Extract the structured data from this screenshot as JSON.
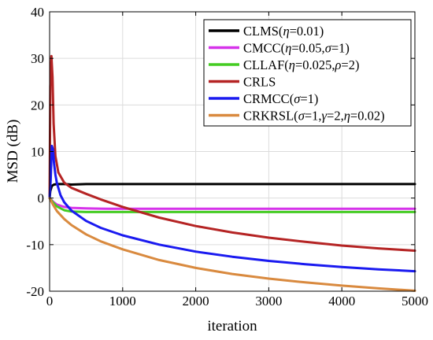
{
  "chart_data": {
    "type": "line",
    "xlabel": "iteration",
    "ylabel": "MSD (dB)",
    "xlim": [
      0,
      5000
    ],
    "ylim": [
      -20,
      40
    ],
    "xticks": [
      0,
      1000,
      2000,
      3000,
      4000,
      5000
    ],
    "yticks": [
      -20,
      -10,
      0,
      10,
      20,
      30,
      40
    ],
    "xtick_labels": [
      "0",
      "1000",
      "2000",
      "3000",
      "4000",
      "5000"
    ],
    "ytick_labels": [
      "-20",
      "-10",
      "0",
      "10",
      "20",
      "30",
      "40"
    ],
    "grid": true,
    "legend_position": "top-right",
    "series": [
      {
        "name": "CLMS(η=0.01)",
        "legend": [
          {
            "t": "CLMS("
          },
          {
            "t": "η",
            "i": true
          },
          {
            "t": "=0.01)"
          }
        ],
        "color": "#000000",
        "x": [
          0,
          10,
          30,
          60,
          100,
          150,
          200,
          300,
          500,
          800,
          1000,
          1500,
          2000,
          2500,
          3000,
          3500,
          4000,
          4500,
          5000
        ],
        "y": [
          0,
          1.5,
          2.6,
          2.9,
          3.0,
          3.0,
          3.0,
          2.9,
          3.0,
          3.0,
          3.0,
          3.0,
          3.0,
          3.0,
          3.0,
          3.0,
          3.0,
          3.0,
          3.0
        ]
      },
      {
        "name": "CMCC(η=0.05,σ=1)",
        "legend": [
          {
            "t": "CMCC("
          },
          {
            "t": "η",
            "i": true
          },
          {
            "t": "=0.05,"
          },
          {
            "t": "σ",
            "i": true
          },
          {
            "t": "=1)"
          }
        ],
        "color": "#d633ea",
        "x": [
          0,
          50,
          100,
          200,
          300,
          500,
          800,
          1000,
          1500,
          2000,
          2500,
          3000,
          3500,
          4000,
          4500,
          5000
        ],
        "y": [
          0,
          -0.8,
          -1.4,
          -1.9,
          -2.1,
          -2.2,
          -2.3,
          -2.3,
          -2.3,
          -2.3,
          -2.3,
          -2.3,
          -2.3,
          -2.3,
          -2.3,
          -2.3
        ]
      },
      {
        "name": "CLLAF(η=0.025,ρ=2)",
        "legend": [
          {
            "t": "CLLAF("
          },
          {
            "t": "η",
            "i": true
          },
          {
            "t": "=0.025,"
          },
          {
            "t": "ρ",
            "i": true
          },
          {
            "t": "=2)"
          }
        ],
        "color": "#44cc22",
        "x": [
          0,
          50,
          100,
          200,
          300,
          500,
          800,
          1000,
          1500,
          2000,
          2500,
          3000,
          3500,
          4000,
          4500,
          5000
        ],
        "y": [
          0,
          -1.0,
          -1.8,
          -2.6,
          -2.9,
          -3.0,
          -3.0,
          -3.0,
          -3.0,
          -3.0,
          -3.0,
          -3.0,
          -3.0,
          -3.0,
          -3.0,
          -3.0
        ]
      },
      {
        "name": "CRLS",
        "legend": [
          {
            "t": "CRLS"
          }
        ],
        "color": "#b52424",
        "x": [
          0,
          10,
          25,
          40,
          55,
          80,
          120,
          200,
          300,
          500,
          700,
          1000,
          1500,
          2000,
          2500,
          3000,
          3500,
          4000,
          4500,
          5000
        ],
        "y": [
          0,
          24,
          30.5,
          26,
          16,
          9,
          5.5,
          3.3,
          2.2,
          0.9,
          -0.3,
          -1.9,
          -4.2,
          -6.0,
          -7.4,
          -8.5,
          -9.4,
          -10.2,
          -10.8,
          -11.3
        ]
      },
      {
        "name": "CRMCC(σ=1)",
        "legend": [
          {
            "t": "CRMCC("
          },
          {
            "t": "σ",
            "i": true
          },
          {
            "t": "=1)"
          }
        ],
        "color": "#1a1af0",
        "x": [
          0,
          15,
          30,
          45,
          60,
          80,
          100,
          150,
          200,
          300,
          500,
          700,
          1000,
          1500,
          2000,
          2500,
          3000,
          3500,
          4000,
          4500,
          5000
        ],
        "y": [
          0,
          4,
          11.2,
          10.5,
          7.5,
          5.0,
          3.2,
          0.6,
          -0.9,
          -2.7,
          -4.9,
          -6.4,
          -8.0,
          -10.0,
          -11.5,
          -12.6,
          -13.5,
          -14.2,
          -14.8,
          -15.3,
          -15.7
        ]
      },
      {
        "name": "CRKRSL(σ=1,γ=2,η=0.02)",
        "legend": [
          {
            "t": "CRKRSL("
          },
          {
            "t": "σ",
            "i": true
          },
          {
            "t": "=1,"
          },
          {
            "t": "γ",
            "i": true
          },
          {
            "t": "=2,"
          },
          {
            "t": "η",
            "i": true
          },
          {
            "t": "=0.02)"
          }
        ],
        "color": "#d98a3f",
        "x": [
          0,
          50,
          100,
          200,
          300,
          500,
          700,
          1000,
          1500,
          2000,
          2500,
          3000,
          3500,
          4000,
          4500,
          5000
        ],
        "y": [
          0,
          -1.5,
          -2.8,
          -4.5,
          -5.8,
          -7.8,
          -9.3,
          -11.0,
          -13.3,
          -15.0,
          -16.3,
          -17.3,
          -18.1,
          -18.8,
          -19.4,
          -19.9
        ]
      }
    ]
  }
}
